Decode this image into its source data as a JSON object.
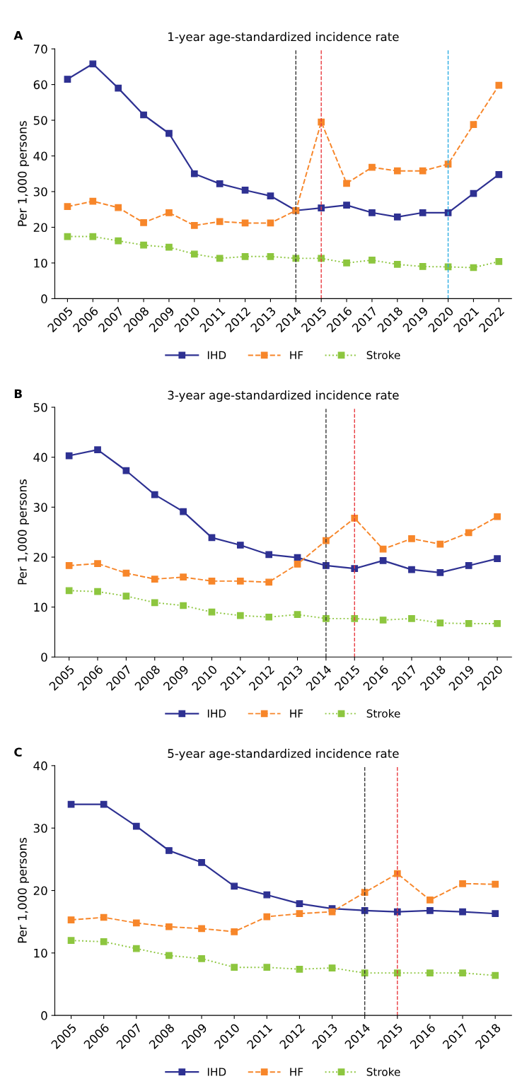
{
  "chart_data": [
    {
      "type": "line",
      "title": "1-year age-standardized incidence rate",
      "ylabel": "Per 1,000 persons",
      "annotations": [
        "A"
      ],
      "categories": [
        "2005",
        "2006",
        "2007",
        "2008",
        "2009",
        "2010",
        "2011",
        "2012",
        "2013",
        "2014",
        "2015",
        "2016",
        "2017",
        "2018",
        "2019",
        "2020",
        "2021",
        "2022"
      ],
      "series": [
        {
          "name": "IHD",
          "color": "#2e3192",
          "line_style": "solid",
          "values": [
            61.5,
            65.8,
            59,
            51.5,
            46.3,
            35,
            32.2,
            30.4,
            28.8,
            24.7,
            25.4,
            26.2,
            24.1,
            22.9,
            24.1,
            24.1,
            29.5,
            34.8
          ]
        },
        {
          "name": "HF",
          "color": "#f7862a",
          "line_style": "dashed",
          "values": [
            25.8,
            27.3,
            25.5,
            21.3,
            24.1,
            20.5,
            21.6,
            21.2,
            21.2,
            24.7,
            49.5,
            32.3,
            36.8,
            35.8,
            35.8,
            37.7,
            48.8,
            59.8
          ]
        },
        {
          "name": "Stroke",
          "color": "#8dc63f",
          "line_style": "dotted",
          "values": [
            17.4,
            17.4,
            16.2,
            15,
            14.4,
            12.5,
            11.3,
            11.8,
            11.8,
            11.3,
            11.3,
            10,
            10.8,
            9.6,
            9,
            8.9,
            8.7,
            10.4
          ]
        }
      ],
      "ylim": [
        0,
        70
      ],
      "yticks": [
        0,
        10,
        20,
        30,
        40,
        50,
        60,
        70
      ],
      "marker": "square",
      "grid": false,
      "legend": "bottom",
      "ref_lines": [
        {
          "axis": "x",
          "value": "2014",
          "color": "#333333",
          "line_style": "dashed"
        },
        {
          "axis": "x",
          "value": "2015",
          "color": "#e8383d",
          "line_style": "dashed"
        },
        {
          "axis": "x",
          "value": "2020",
          "color": "#29abe2",
          "line_style": "dashed"
        }
      ]
    },
    {
      "type": "line",
      "title": "3-year age-standardized incidence rate",
      "ylabel": "Per 1,000 persons",
      "annotations": [
        "B"
      ],
      "categories": [
        "2005",
        "2006",
        "2007",
        "2008",
        "2009",
        "2010",
        "2011",
        "2012",
        "2013",
        "2014",
        "2015",
        "2016",
        "2017",
        "2018",
        "2019",
        "2020"
      ],
      "series": [
        {
          "name": "IHD",
          "color": "#2e3192",
          "line_style": "solid",
          "values": [
            40.3,
            41.5,
            37.3,
            32.5,
            29.1,
            23.9,
            22.4,
            20.5,
            19.9,
            18.3,
            17.7,
            19.3,
            17.5,
            16.9,
            18.3,
            19.7
          ]
        },
        {
          "name": "HF",
          "color": "#f7862a",
          "line_style": "dashed",
          "values": [
            18.3,
            18.7,
            16.8,
            15.6,
            16,
            15.2,
            15.2,
            15.0,
            18.6,
            23.3,
            27.8,
            21.6,
            23.7,
            22.6,
            24.9,
            28.1
          ]
        },
        {
          "name": "Stroke",
          "color": "#8dc63f",
          "line_style": "dotted",
          "values": [
            13.3,
            13.1,
            12.2,
            10.9,
            10.3,
            9,
            8.3,
            8,
            8.5,
            7.7,
            7.7,
            7.4,
            7.7,
            6.8,
            6.7,
            6.7
          ]
        }
      ],
      "ylim": [
        0,
        50
      ],
      "yticks": [
        0,
        10,
        20,
        30,
        40,
        50
      ],
      "marker": "square",
      "grid": false,
      "legend": "bottom",
      "ref_lines": [
        {
          "axis": "x",
          "value": "2014",
          "color": "#333333",
          "line_style": "dashed"
        },
        {
          "axis": "x",
          "value": "2015",
          "color": "#e8383d",
          "line_style": "dashed"
        }
      ]
    },
    {
      "type": "line",
      "title": "5-year age-standardized incidence rate",
      "ylabel": "Per 1,000 persons",
      "annotations": [
        "C"
      ],
      "categories": [
        "2005",
        "2006",
        "2007",
        "2008",
        "2009",
        "2010",
        "2011",
        "2012",
        "2013",
        "2014",
        "2015",
        "2016",
        "2017",
        "2018"
      ],
      "series": [
        {
          "name": "IHD",
          "color": "#2e3192",
          "line_style": "solid",
          "values": [
            33.8,
            33.8,
            30.3,
            26.4,
            24.5,
            20.7,
            19.3,
            17.9,
            17.1,
            16.8,
            16.6,
            16.8,
            16.6,
            16.3
          ]
        },
        {
          "name": "HF",
          "color": "#f7862a",
          "line_style": "dashed",
          "values": [
            15.3,
            15.7,
            14.8,
            14.2,
            13.9,
            13.4,
            15.8,
            16.3,
            16.6,
            19.7,
            22.7,
            18.5,
            21.1,
            21.0
          ]
        },
        {
          "name": "Stroke",
          "color": "#8dc63f",
          "line_style": "dotted",
          "values": [
            12,
            11.8,
            10.7,
            9.6,
            9.1,
            7.7,
            7.7,
            7.4,
            7.6,
            6.8,
            6.8,
            6.8,
            6.8,
            6.4
          ]
        }
      ],
      "ylim": [
        0,
        40
      ],
      "yticks": [
        0,
        10,
        20,
        30,
        40
      ],
      "marker": "square",
      "grid": false,
      "legend": "bottom",
      "ref_lines": [
        {
          "axis": "x",
          "value": "2014",
          "color": "#333333",
          "line_style": "dashed"
        },
        {
          "axis": "x",
          "value": "2015",
          "color": "#e8383d",
          "line_style": "dashed"
        }
      ]
    }
  ]
}
